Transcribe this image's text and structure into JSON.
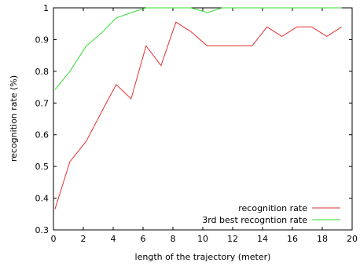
{
  "chart_data": {
    "type": "line",
    "xlabel": "length of the trajectory (meter)",
    "ylabel": "recognition rate (%)",
    "xlim": [
      0,
      20
    ],
    "ylim": [
      0.3,
      1.0
    ],
    "x_ticks": [
      0,
      2,
      4,
      6,
      8,
      10,
      12,
      14,
      16,
      18,
      20
    ],
    "y_ticks": [
      0.3,
      0.4,
      0.5,
      0.6,
      0.7,
      0.8,
      0.9,
      1.0
    ],
    "x_tick_labels": [
      "0",
      "2",
      "4",
      "6",
      "8",
      "10",
      "12",
      "14",
      "16",
      "18",
      "20"
    ],
    "y_tick_labels": [
      "0.3",
      "0.4",
      "0.5",
      "0.6",
      "0.7",
      "0.8",
      "0.9",
      "1"
    ],
    "grid": false,
    "legend_position": "bottom-right",
    "series": [
      {
        "name": "recognition rate",
        "color": "#e03030",
        "points": [
          [
            0.1,
            0.365
          ],
          [
            1.1,
            0.515
          ],
          [
            2.2,
            0.58
          ],
          [
            3.2,
            0.67
          ],
          [
            4.2,
            0.758
          ],
          [
            5.2,
            0.713
          ],
          [
            6.2,
            0.88
          ],
          [
            7.2,
            0.818
          ],
          [
            8.2,
            0.955
          ],
          [
            9.2,
            0.925
          ],
          [
            10.3,
            0.88
          ],
          [
            11.3,
            0.88
          ],
          [
            12.3,
            0.88
          ],
          [
            13.3,
            0.88
          ],
          [
            14.3,
            0.94
          ],
          [
            15.3,
            0.91
          ],
          [
            16.3,
            0.94
          ],
          [
            17.3,
            0.94
          ],
          [
            18.3,
            0.91
          ],
          [
            19.3,
            0.94
          ]
        ]
      },
      {
        "name": "3rd best recogntion rate",
        "color": "#33dd33",
        "points": [
          [
            0.1,
            0.742
          ],
          [
            1.1,
            0.8
          ],
          [
            2.2,
            0.88
          ],
          [
            3.2,
            0.92
          ],
          [
            4.2,
            0.968
          ],
          [
            5.2,
            0.985
          ],
          [
            6.2,
            1.0
          ],
          [
            7.2,
            1.0
          ],
          [
            8.2,
            1.0
          ],
          [
            9.2,
            1.0
          ],
          [
            10.3,
            0.985
          ],
          [
            11.3,
            1.0
          ],
          [
            12.3,
            1.0
          ],
          [
            13.3,
            1.0
          ],
          [
            14.3,
            1.0
          ],
          [
            15.3,
            1.0
          ],
          [
            16.3,
            1.0
          ],
          [
            17.3,
            1.0
          ],
          [
            18.3,
            1.0
          ],
          [
            19.3,
            1.0
          ]
        ]
      }
    ]
  }
}
